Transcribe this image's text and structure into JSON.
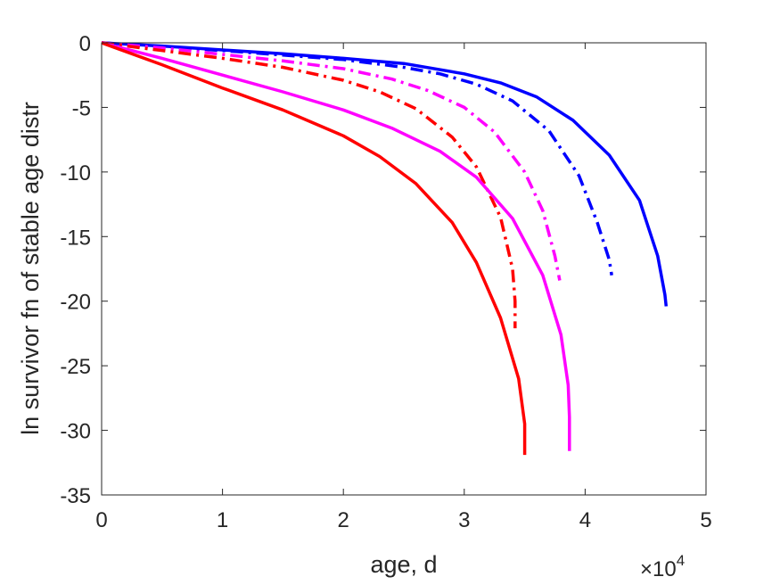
{
  "chart_data": {
    "type": "line",
    "xlabel": "age, d",
    "ylabel": "ln survivor fn of stable age distr",
    "x_exponent_label": {
      "base": "×10",
      "exponent": "4"
    },
    "xlim": [
      0,
      5
    ],
    "ylim": [
      -35,
      0
    ],
    "x_ticks": [
      0,
      1,
      2,
      3,
      4,
      5
    ],
    "y_ticks": [
      0,
      -5,
      -10,
      -15,
      -20,
      -25,
      -30,
      -35
    ],
    "x_tick_labels": [
      "0",
      "1",
      "2",
      "3",
      "4",
      "5"
    ],
    "y_tick_labels": [
      "0",
      "-5",
      "-10",
      "-15",
      "-20",
      "-25",
      "-30",
      "-35"
    ],
    "grid": false,
    "x_scale_note": "x values in units of 10^4 d",
    "series": [
      {
        "color": "#0000ff",
        "style": "solid",
        "x": [
          0,
          0.5,
          1.0,
          1.5,
          2.0,
          2.5,
          3.0,
          3.3,
          3.6,
          3.9,
          4.2,
          4.45,
          4.6,
          4.66,
          4.67
        ],
        "y": [
          0,
          -0.25,
          -0.55,
          -0.85,
          -1.2,
          -1.6,
          -2.4,
          -3.1,
          -4.2,
          -6.0,
          -8.7,
          -12.2,
          -16.5,
          -19.5,
          -20.4
        ]
      },
      {
        "color": "#0000ff",
        "style": "dashdot",
        "x": [
          0,
          0.5,
          1.0,
          1.5,
          2.0,
          2.5,
          2.8,
          3.1,
          3.4,
          3.7,
          3.95,
          4.1,
          4.2,
          4.22
        ],
        "y": [
          0,
          -0.3,
          -0.6,
          -0.95,
          -1.3,
          -1.9,
          -2.4,
          -3.2,
          -4.5,
          -6.8,
          -10.3,
          -13.9,
          -16.8,
          -18.0
        ]
      },
      {
        "color": "#ff00ff",
        "style": "dashdot",
        "x": [
          0,
          0.5,
          1.0,
          1.5,
          2.0,
          2.4,
          2.7,
          3.0,
          3.25,
          3.5,
          3.65,
          3.75,
          3.79
        ],
        "y": [
          0,
          -0.4,
          -0.9,
          -1.4,
          -2.0,
          -2.8,
          -3.7,
          -5.0,
          -6.9,
          -10.0,
          -13.0,
          -16.5,
          -18.4
        ]
      },
      {
        "color": "#ff0000",
        "style": "dashdot",
        "x": [
          0,
          0.5,
          1.0,
          1.5,
          2.0,
          2.3,
          2.6,
          2.9,
          3.1,
          3.3,
          3.4,
          3.42,
          3.42
        ],
        "y": [
          0,
          -0.6,
          -1.2,
          -1.9,
          -2.9,
          -3.8,
          -5.1,
          -7.3,
          -9.6,
          -13.5,
          -17.5,
          -20.0,
          -22.1
        ]
      },
      {
        "color": "#ff00ff",
        "style": "solid",
        "x": [
          0,
          0.5,
          1.0,
          1.5,
          2.0,
          2.4,
          2.8,
          3.1,
          3.4,
          3.65,
          3.8,
          3.86,
          3.87,
          3.87
        ],
        "y": [
          0,
          -1.2,
          -2.5,
          -3.8,
          -5.2,
          -6.6,
          -8.4,
          -10.4,
          -13.6,
          -18.0,
          -22.6,
          -26.5,
          -29.0,
          -31.6
        ]
      },
      {
        "color": "#ff0000",
        "style": "solid",
        "x": [
          0,
          0.5,
          1.0,
          1.5,
          2.0,
          2.3,
          2.6,
          2.9,
          3.1,
          3.3,
          3.45,
          3.5,
          3.5
        ],
        "y": [
          0,
          -1.7,
          -3.5,
          -5.2,
          -7.2,
          -8.8,
          -10.9,
          -13.9,
          -17.0,
          -21.3,
          -26.0,
          -29.5,
          -31.9
        ]
      }
    ]
  }
}
